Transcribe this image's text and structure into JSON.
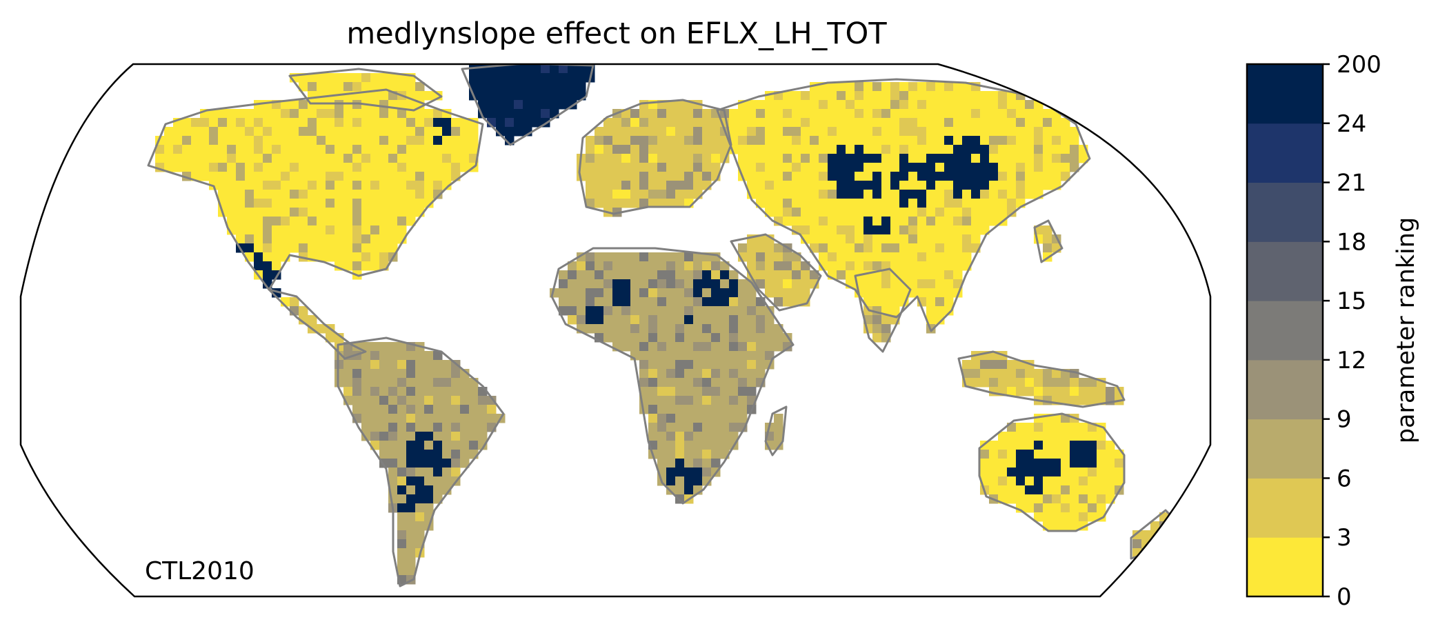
{
  "figure": {
    "title": "medlynslope effect on EFLX_LH_TOT",
    "scenario_label": "CTL2010"
  },
  "chart_data": {
    "type": "heatmap",
    "title": "medlynslope effect on EFLX_LH_TOT",
    "projection": "Robinson (global)",
    "annotation": "CTL2010",
    "colorbar": {
      "label": "parameter ranking",
      "orientation": "vertical",
      "placement": "right",
      "tick_labels": [
        "0",
        "3",
        "6",
        "9",
        "12",
        "15",
        "18",
        "21",
        "24",
        "200"
      ],
      "bins": [
        {
          "range": [
            0,
            3
          ],
          "color": "#fde838"
        },
        {
          "range": [
            3,
            6
          ],
          "color": "#dfc854"
        },
        {
          "range": [
            6,
            9
          ],
          "color": "#b9ab6c"
        },
        {
          "range": [
            9,
            12
          ],
          "color": "#9b9278"
        },
        {
          "range": [
            12,
            15
          ],
          "color": "#7c7b78"
        },
        {
          "range": [
            15,
            18
          ],
          "color": "#5f636f"
        },
        {
          "range": [
            18,
            21
          ],
          "color": "#404d6b"
        },
        {
          "range": [
            21,
            24
          ],
          "color": "#1e356b"
        },
        {
          "range": [
            24,
            200
          ],
          "color": "#00224e"
        }
      ]
    },
    "regions": [
      {
        "name": "Canada / Alaska",
        "dominant_bin": "0-3"
      },
      {
        "name": "Greenland",
        "dominant_bin": "24-200"
      },
      {
        "name": "USA (central/east)",
        "dominant_bin": "0-3"
      },
      {
        "name": "USA (southwest)",
        "dominant_bin": "24-200"
      },
      {
        "name": "Mexico / Central America",
        "dominant_bin": "3-6"
      },
      {
        "name": "Amazon",
        "dominant_bin": "6-9"
      },
      {
        "name": "Southern South America",
        "dominant_bin": "24-200"
      },
      {
        "name": "Europe",
        "dominant_bin": "3-6"
      },
      {
        "name": "Sahara",
        "dominant_bin": "6-9"
      },
      {
        "name": "Sahel",
        "dominant_bin": "24-200"
      },
      {
        "name": "Central Africa",
        "dominant_bin": "6-9"
      },
      {
        "name": "Southern Africa",
        "dominant_bin": "0-3"
      },
      {
        "name": "Kalahari",
        "dominant_bin": "24-200"
      },
      {
        "name": "Siberia",
        "dominant_bin": "0-3"
      },
      {
        "name": "Central Asia",
        "dominant_bin": "24-200"
      },
      {
        "name": "India / SE Asia",
        "dominant_bin": "3-6"
      },
      {
        "name": "Australia (interior)",
        "dominant_bin": "24-200"
      },
      {
        "name": "Australia (coast)",
        "dominant_bin": "0-3"
      }
    ]
  }
}
